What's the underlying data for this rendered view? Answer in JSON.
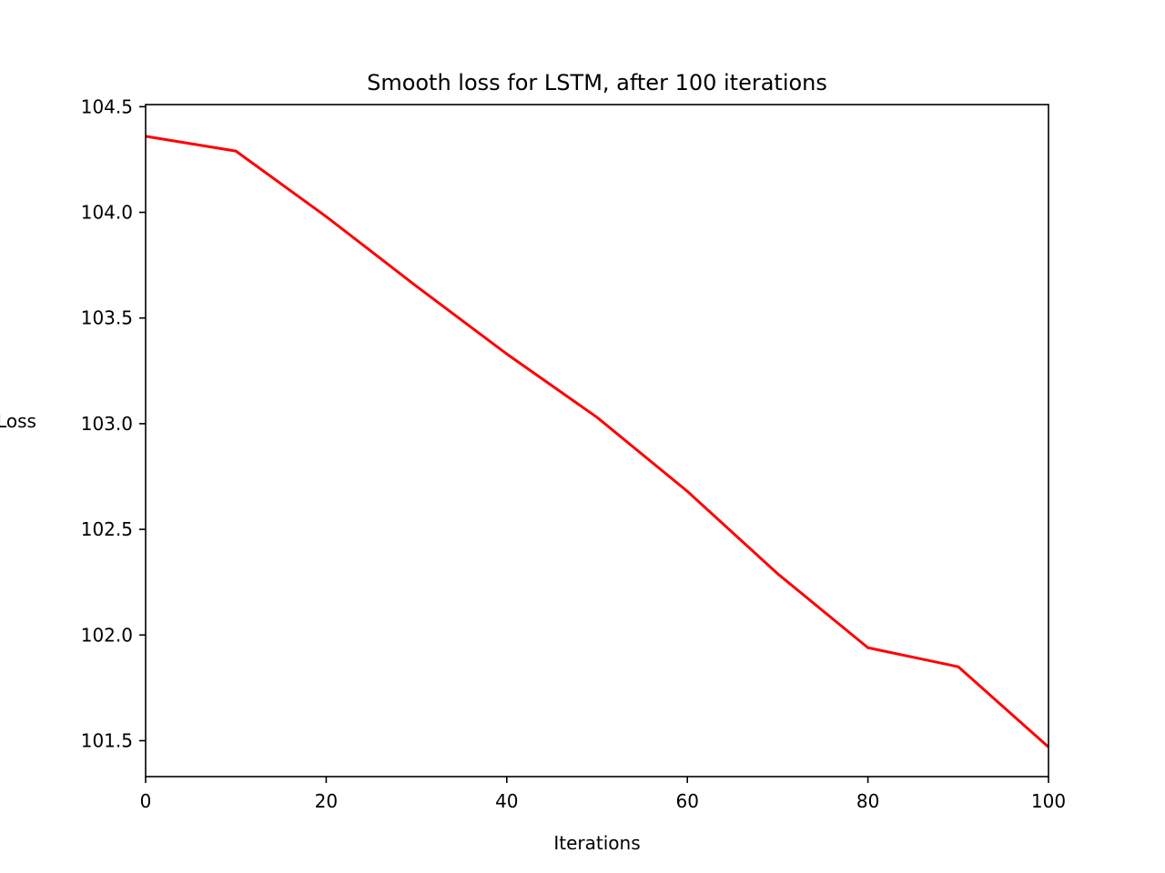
{
  "chart_data": {
    "type": "line",
    "title": "Smooth loss for LSTM, after 100 iterations",
    "xlabel": "Iterations",
    "ylabel": "Loss",
    "xlim": [
      0,
      100
    ],
    "ylim": [
      101.33,
      104.51
    ],
    "x_ticks": [
      0,
      20,
      40,
      60,
      80,
      100
    ],
    "x_tick_labels": [
      "0",
      "20",
      "40",
      "60",
      "80",
      "100"
    ],
    "y_ticks": [
      101.5,
      102.0,
      102.5,
      103.0,
      103.5,
      104.0,
      104.5
    ],
    "y_tick_labels": [
      "101.5",
      "102.0",
      "102.5",
      "103.0",
      "103.5",
      "104.0",
      "104.5"
    ],
    "grid": false,
    "series": [
      {
        "color": "#ff0000",
        "x": [
          0,
          10,
          20,
          30,
          40,
          50,
          60,
          70,
          80,
          90,
          100
        ],
        "y": [
          104.36,
          104.29,
          103.98,
          103.65,
          103.33,
          103.03,
          102.68,
          102.29,
          101.94,
          101.85,
          101.47
        ]
      }
    ]
  }
}
